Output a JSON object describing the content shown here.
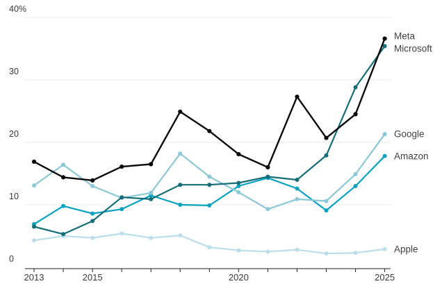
{
  "chart_data": {
    "type": "line",
    "unit": "%",
    "x": [
      2013,
      2014,
      2015,
      2016,
      2017,
      2018,
      2019,
      2020,
      2021,
      2022,
      2023,
      2024,
      2025
    ],
    "xlim": [
      2013,
      2025
    ],
    "ylim": [
      0,
      40
    ],
    "grid": "horizontal",
    "legend_position": "right-of-line-endpoints",
    "y_ticks": [
      {
        "value": 40,
        "label": "40%"
      },
      {
        "value": 30,
        "label": "30"
      },
      {
        "value": 20,
        "label": "20"
      },
      {
        "value": 10,
        "label": "10"
      },
      {
        "value": 0,
        "label": "0"
      }
    ],
    "x_tick_labels": [
      {
        "x": 2013,
        "label": "2013"
      },
      {
        "x": 2015,
        "label": "2015"
      },
      {
        "x": 2020,
        "label": "2020"
      },
      {
        "x": 2025,
        "label": "2025"
      }
    ],
    "series": [
      {
        "name": "Meta",
        "color": "#0b0b0b",
        "values": [
          16.9,
          14.4,
          13.9,
          16.1,
          16.5,
          24.9,
          21.8,
          18.1,
          16.0,
          27.3,
          20.7,
          24.5,
          36.6
        ]
      },
      {
        "name": "Microsoft",
        "color": "#146e79",
        "values": [
          6.5,
          5.3,
          7.4,
          11.2,
          10.9,
          13.2,
          13.2,
          13.5,
          14.5,
          14.0,
          17.9,
          28.8,
          35.4
        ]
      },
      {
        "name": "Google",
        "color": "#8ac7d7",
        "values": [
          13.1,
          16.4,
          13.0,
          11.1,
          11.9,
          18.2,
          14.5,
          12.0,
          9.3,
          10.9,
          10.6,
          14.9,
          21.3
        ]
      },
      {
        "name": "Amazon",
        "color": "#07a2c2",
        "values": [
          6.9,
          9.8,
          8.6,
          9.3,
          11.5,
          10.0,
          9.9,
          13.0,
          14.3,
          12.6,
          9.1,
          13.0,
          17.8
        ]
      },
      {
        "name": "Apple",
        "color": "#badfea",
        "values": [
          4.3,
          5.0,
          4.7,
          5.4,
          4.7,
          5.1,
          3.2,
          2.7,
          2.5,
          2.8,
          2.2,
          2.3,
          2.9
        ]
      }
    ]
  },
  "colors": {
    "background": "#ffffff",
    "gridline": "#e8e8e8",
    "axis": "#1f1f1f",
    "tick_text": "#383838",
    "series_label_text": "#3f3f3f"
  }
}
